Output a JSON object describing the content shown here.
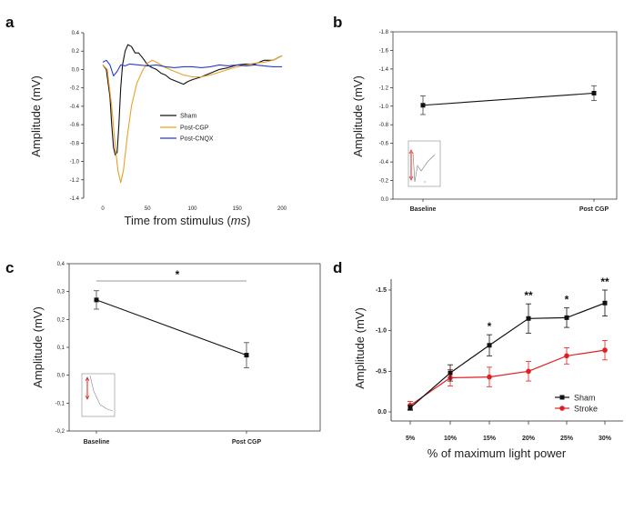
{
  "chart_data": [
    {
      "panel": "a",
      "type": "line",
      "ylabel": "Amplitude (mV)",
      "xlabel_prefix": "Time from stimulus (",
      "xlabel_unit": "ms",
      "xlabel_suffix": ")",
      "xlim": [
        -15,
        220
      ],
      "ylim": [
        -1.4,
        0.4
      ],
      "x_ticks": [
        "0",
        "50",
        "100",
        "150",
        "200"
      ],
      "x_tick_values": [
        0,
        50,
        100,
        150,
        200
      ],
      "y_ticks": [
        "0.4",
        "0.2",
        "0.0",
        "-0.2",
        "-0.4",
        "-0.6",
        "-0.8",
        "-1.0",
        "-1.2",
        "-1.4"
      ],
      "y_tick_values": [
        0.4,
        0.2,
        0.0,
        -0.2,
        -0.4,
        -0.6,
        -0.8,
        -1.0,
        -1.2,
        -1.4
      ],
      "legend": "center-right",
      "series": [
        {
          "name": "Sham",
          "color": "#111111",
          "x": [
            0,
            4,
            8,
            10,
            12,
            14,
            16,
            18,
            20,
            22,
            25,
            28,
            32,
            36,
            40,
            45,
            50,
            55,
            60,
            65,
            70,
            75,
            80,
            85,
            90,
            95,
            100,
            110,
            120,
            130,
            140,
            150,
            160,
            170,
            180,
            190,
            200
          ],
          "y": [
            0.05,
            0.0,
            -0.3,
            -0.6,
            -0.85,
            -0.93,
            -0.9,
            -0.6,
            -0.2,
            0.05,
            0.2,
            0.27,
            0.25,
            0.18,
            0.18,
            0.12,
            0.05,
            0.02,
            0.0,
            -0.04,
            -0.06,
            -0.1,
            -0.12,
            -0.14,
            -0.16,
            -0.13,
            -0.11,
            -0.08,
            -0.04,
            0.0,
            0.02,
            0.05,
            0.06,
            0.06,
            0.1,
            0.1,
            0.15
          ]
        },
        {
          "name": "Post-CGP",
          "color": "#e8a12a",
          "x": [
            0,
            5,
            10,
            14,
            17,
            20,
            23,
            27,
            32,
            38,
            45,
            50,
            55,
            60,
            65,
            70,
            80,
            90,
            100,
            110,
            120,
            130,
            140,
            150,
            160,
            170,
            180,
            190,
            200
          ],
          "y": [
            0.05,
            0.0,
            -0.4,
            -0.85,
            -1.1,
            -1.23,
            -1.1,
            -0.75,
            -0.4,
            -0.15,
            0.0,
            0.07,
            0.1,
            0.08,
            0.05,
            0.02,
            -0.02,
            -0.06,
            -0.08,
            -0.08,
            -0.06,
            -0.03,
            0.0,
            0.03,
            0.05,
            0.07,
            0.08,
            0.1,
            0.15
          ]
        },
        {
          "name": "Post-CNQX",
          "color": "#2b3bd1",
          "x": [
            0,
            4,
            8,
            12,
            16,
            20,
            25,
            30,
            40,
            50,
            60,
            70,
            80,
            90,
            100,
            110,
            120,
            130,
            140,
            150,
            160,
            170,
            180,
            190,
            200
          ],
          "y": [
            0.08,
            0.1,
            0.05,
            -0.07,
            -0.02,
            0.05,
            0.04,
            0.06,
            0.05,
            0.04,
            0.05,
            0.03,
            0.02,
            0.03,
            0.03,
            0.02,
            0.03,
            0.05,
            0.04,
            0.05,
            0.04,
            0.05,
            0.04,
            0.03,
            0.03
          ]
        }
      ]
    },
    {
      "panel": "b",
      "type": "line",
      "ylabel": "Amplitude (mV)",
      "categories": [
        "Baseline",
        "Post CGP"
      ],
      "values": [
        -1.01,
        -1.14
      ],
      "errors": [
        0.1,
        0.08
      ],
      "ylim": [
        0,
        -1.8
      ],
      "y_ticks": [
        "0.0",
        "-0.2",
        "-0.4",
        "-0.6",
        "-0.8",
        "-1.0",
        "-1.2",
        "-1.4",
        "-1.6",
        "-1.8"
      ],
      "y_tick_values": [
        0,
        -0.2,
        -0.4,
        -0.6,
        -0.8,
        -1.0,
        -1.2,
        -1.4,
        -1.6,
        -1.8
      ]
    },
    {
      "panel": "c",
      "type": "line",
      "ylabel": "Amplitude (mV)",
      "categories": [
        "Baseline",
        "Post CGP"
      ],
      "values": [
        0.27,
        0.072
      ],
      "errors": [
        0.033,
        0.045
      ],
      "ylim": [
        -0.2,
        0.4
      ],
      "y_ticks": [
        "0,4",
        "0,3",
        "0,2",
        "0,1",
        "0,0",
        "-0,1",
        "-0,2"
      ],
      "y_tick_values": [
        0.4,
        0.3,
        0.2,
        0.1,
        0.0,
        -0.1,
        -0.2
      ],
      "significance": "*"
    },
    {
      "panel": "d",
      "type": "line",
      "ylabel": "Amplitude (mV)",
      "xlabel": "% of maximum light power",
      "categories": [
        "5%",
        "10%",
        "15%",
        "20%",
        "25%",
        "30%"
      ],
      "ylim": [
        0.1,
        -1.55
      ],
      "y_ticks": [
        "-1.5",
        "-1.0",
        "-0.5",
        "0.0"
      ],
      "y_tick_values": [
        -1.5,
        -1.0,
        -0.5,
        0.0
      ],
      "legend": "bottom-right",
      "series": [
        {
          "name": "Sham",
          "color": "#111111",
          "values": [
            -0.05,
            -0.48,
            -0.82,
            -1.15,
            -1.16,
            -1.34
          ],
          "errors": [
            0.03,
            0.1,
            0.13,
            0.18,
            0.12,
            0.16
          ]
        },
        {
          "name": "Stroke",
          "color": "#e02020",
          "values": [
            -0.08,
            -0.42,
            -0.43,
            -0.5,
            -0.69,
            -0.76
          ],
          "errors": [
            0.05,
            0.1,
            0.12,
            0.12,
            0.1,
            0.12
          ]
        }
      ],
      "significance": [
        "",
        "",
        "*",
        "**",
        "*",
        "**"
      ]
    }
  ],
  "panel_labels": [
    "a",
    "b",
    "c",
    "d"
  ]
}
